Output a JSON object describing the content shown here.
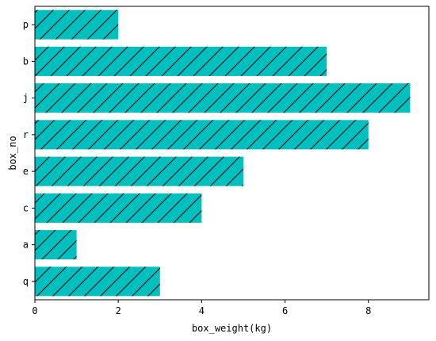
{
  "chart_data": {
    "type": "bar",
    "orientation": "horizontal",
    "categories": [
      "q",
      "a",
      "c",
      "e",
      "r",
      "j",
      "b",
      "p"
    ],
    "values": [
      3,
      1,
      4,
      5,
      8,
      9,
      7,
      2
    ],
    "xlabel": "box_weight(kg)",
    "ylabel": "box_no",
    "xlim": [
      0,
      9.45
    ],
    "xticks": [
      0,
      2,
      4,
      6,
      8
    ],
    "bar_color": "#00bfbf",
    "hatch": "/",
    "grid": false
  }
}
